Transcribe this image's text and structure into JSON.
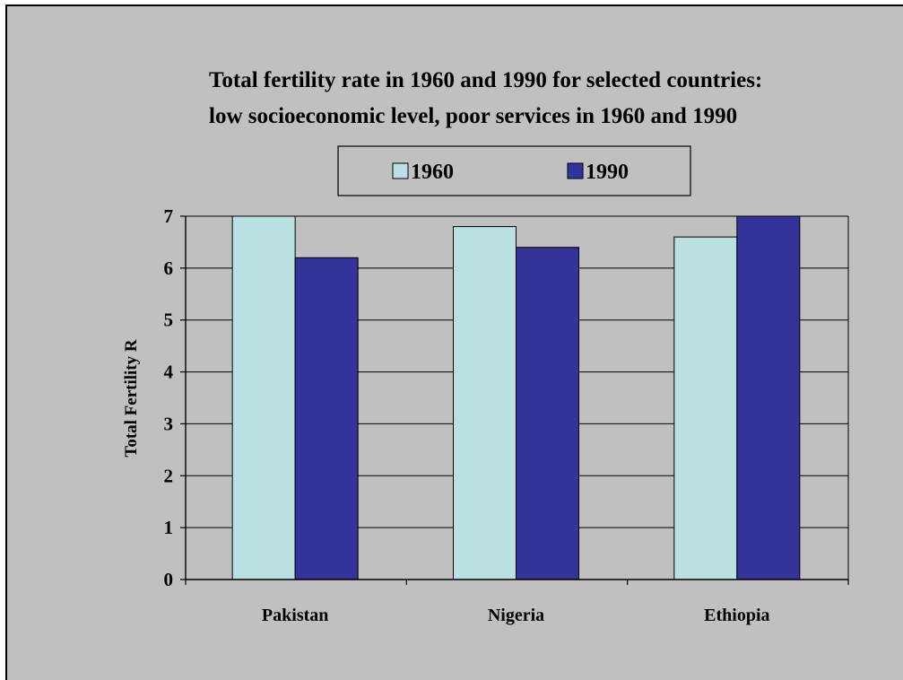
{
  "chart_data": {
    "type": "bar",
    "title_lines": [
      "Total fertility rate in 1960 and 1990 for selected countries:",
      "low socioeconomic level, poor services in 1960 and 1990"
    ],
    "categories": [
      "Pakistan",
      "Nigeria",
      "Ethiopia"
    ],
    "series": [
      {
        "name": "1960",
        "values": [
          7.0,
          6.8,
          6.6
        ],
        "color": "#bae0e2"
      },
      {
        "name": "1990",
        "values": [
          6.2,
          6.4,
          7.0
        ],
        "color": "#333399"
      }
    ],
    "xlabel": "",
    "ylabel": "Total Fertility R",
    "ylim": [
      0,
      7
    ],
    "yticks": [
      "0",
      "1",
      "2",
      "3",
      "4",
      "5",
      "6",
      "7"
    ],
    "grid": true,
    "legend_position": "top-center",
    "background_color": "#c0c0c0",
    "plot_background_color": "#c0c0c0"
  }
}
